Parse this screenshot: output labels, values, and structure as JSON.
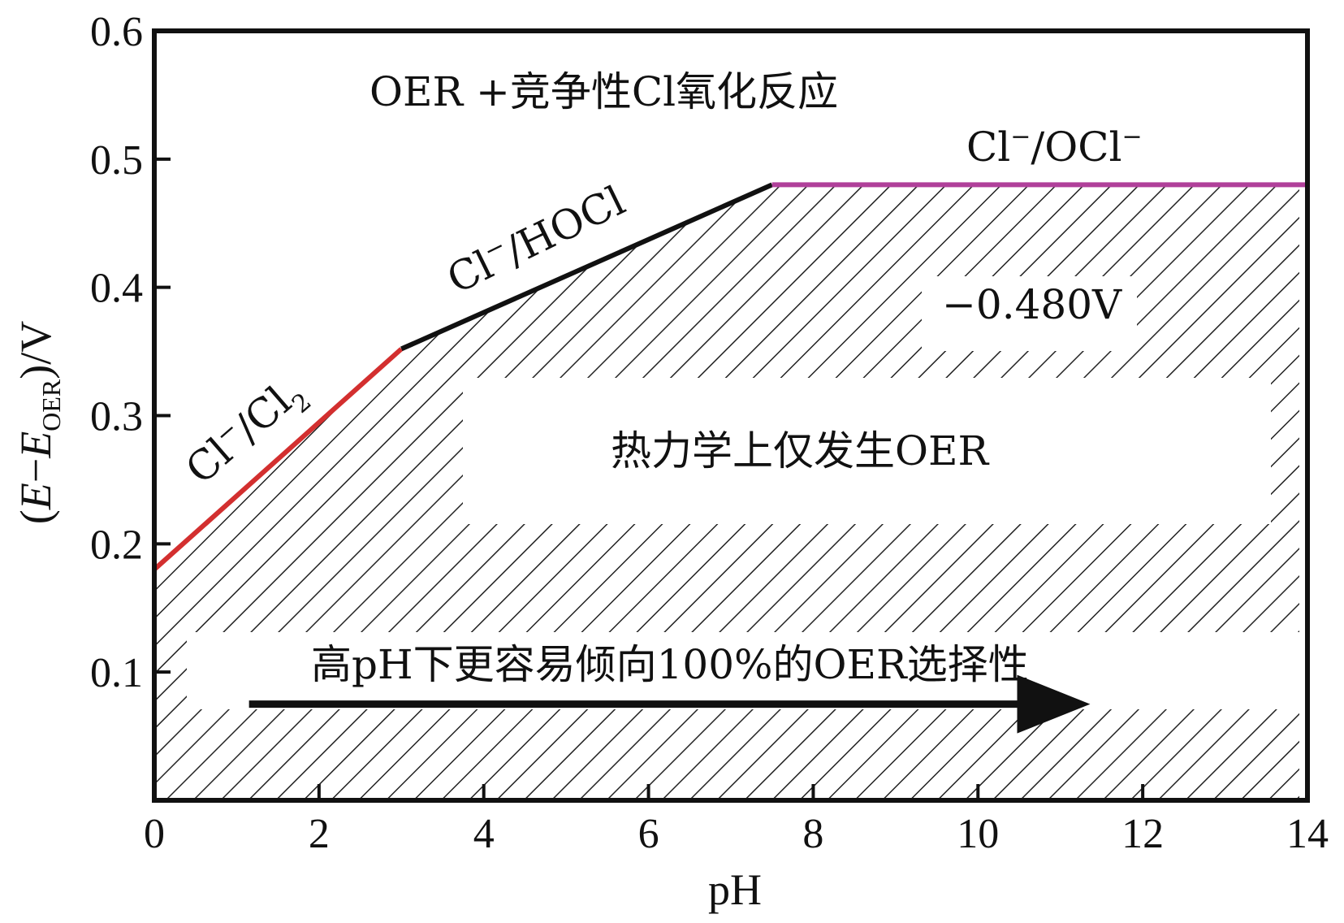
{
  "chart_data": {
    "type": "line",
    "xlabel": "pH",
    "ylabel": "(E−E_OER)/V",
    "ylabel_parts": {
      "open": "(",
      "e1": "E",
      "minus": "−",
      "e2": "E",
      "sub": "OER",
      "close": ")/V"
    },
    "xlim": [
      0,
      14
    ],
    "ylim": [
      0,
      0.6
    ],
    "x_ticks": [
      0,
      2,
      4,
      6,
      8,
      10,
      12,
      14
    ],
    "x_tick_labels": [
      "0",
      "2",
      "4",
      "6",
      "8",
      "10",
      "12",
      "14"
    ],
    "y_ticks": [
      0.1,
      0.2,
      0.3,
      0.4,
      0.5,
      0.6
    ],
    "y_tick_labels": [
      "0.1",
      "0.2",
      "0.3",
      "0.4",
      "0.5",
      "0.6"
    ],
    "series": [
      {
        "name": "Cl⁻/Cl₂",
        "color": "#d32f2f",
        "x": [
          0,
          3
        ],
        "y": [
          0.18,
          0.352
        ]
      },
      {
        "name": "Cl⁻/HOCl",
        "color": "#111111",
        "x": [
          3,
          7.5
        ],
        "y": [
          0.352,
          0.48
        ]
      },
      {
        "name": "Cl⁻/OCl⁻",
        "color": "#b0409a",
        "x": [
          7.5,
          14
        ],
        "y": [
          0.48,
          0.48
        ]
      }
    ],
    "hatched_region": "below boundary (thermodynamically OER only)",
    "annotations": {
      "top_region": "OER +竞争性Cl氧化反应",
      "cl2_label": {
        "base": "Cl",
        "sup": "−",
        "mid": "/Cl",
        "sub": "2"
      },
      "hocl_label": {
        "base": "Cl",
        "sup": "−",
        "rest": "/HOCl"
      },
      "ocl_label": {
        "base": "Cl",
        "sup1": "−",
        "mid": "/OCl",
        "sup2": "−"
      },
      "value_label": "−0.480V",
      "oer_only": "热力学上仅发生OER",
      "high_ph": "高pH下更容易倾向100%的OER选择性"
    },
    "arrow": {
      "x_start": 1.15,
      "x_end": 11.5,
      "y": 0.075
    },
    "grid": false
  }
}
